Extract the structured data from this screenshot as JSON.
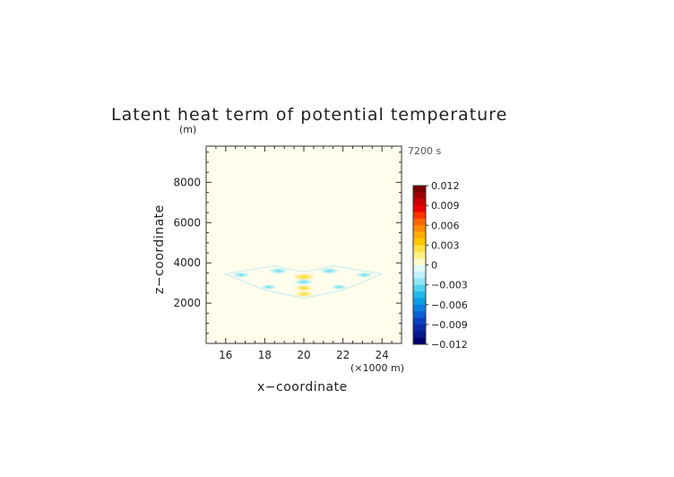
{
  "chart_data": {
    "type": "heatmap",
    "title": "Latent heat term of potential temperature",
    "ylabel": "z−coordinate",
    "yunit": "(m)",
    "xlabel": "x−coordinate",
    "xunit": "(×1000 m)",
    "time_label": "7200 s",
    "xlim": [
      15,
      25
    ],
    "ylim": [
      0,
      9800
    ],
    "x_ticks": [
      "16",
      "18",
      "20",
      "22",
      "24"
    ],
    "x_tick_values": [
      16,
      18,
      20,
      22,
      24
    ],
    "y_ticks": [
      "2000",
      "4000",
      "6000",
      "8000"
    ],
    "y_tick_values": [
      2000,
      4000,
      6000,
      8000
    ],
    "field_features": [
      {
        "x": 20.0,
        "z": 3300,
        "value": 0.003
      },
      {
        "x": 20.0,
        "z": 3050,
        "value": -0.002
      },
      {
        "x": 20.0,
        "z": 2750,
        "value": 0.002
      },
      {
        "x": 20.0,
        "z": 2450,
        "value": 0.002
      },
      {
        "x": 18.7,
        "z": 3600,
        "value": -0.002
      },
      {
        "x": 21.3,
        "z": 3600,
        "value": -0.002
      },
      {
        "x": 16.8,
        "z": 3400,
        "value": -0.0015
      },
      {
        "x": 23.1,
        "z": 3400,
        "value": -0.0015
      },
      {
        "x": 18.2,
        "z": 2800,
        "value": -0.0012
      },
      {
        "x": 21.8,
        "z": 2800,
        "value": -0.0012
      }
    ],
    "colorbar": {
      "min": -0.012,
      "max": 0.012,
      "tick_labels": [
        "0.012",
        "0.009",
        "0.006",
        "0.003",
        "0",
        "−0.003",
        "−0.006",
        "−0.009",
        "−0.012"
      ],
      "tick_values": [
        0.012,
        0.009,
        0.006,
        0.003,
        0,
        -0.003,
        -0.006,
        -0.009,
        -0.012
      ],
      "colors": [
        "#7d0000",
        "#a00000",
        "#c80000",
        "#ee0000",
        "#ff3300",
        "#ff6600",
        "#ff8c00",
        "#ffaa00",
        "#ffc800",
        "#ffe040",
        "#fff080",
        "#fffac8",
        "#e0fafa",
        "#c0f0f8",
        "#90e4f4",
        "#50d2ee",
        "#20bae8",
        "#0a9ee4",
        "#0a80e0",
        "#0a60d4",
        "#0a40c0",
        "#0a28a8",
        "#06168c",
        "#000070"
      ]
    }
  }
}
